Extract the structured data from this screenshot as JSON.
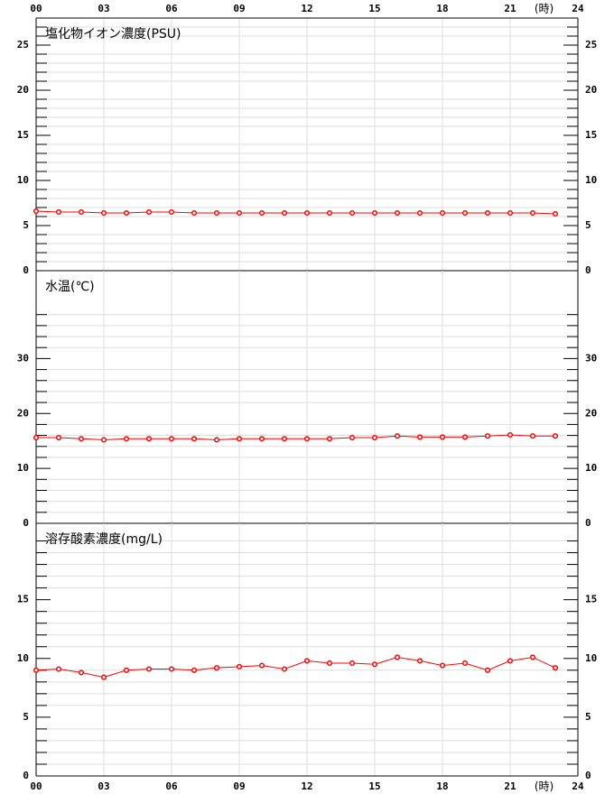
{
  "chart_data": [
    {
      "type": "line",
      "title": "塩化物イオン濃度(PSU)",
      "xlabel": "(時)",
      "x": [
        0,
        1,
        2,
        3,
        4,
        5,
        6,
        7,
        8,
        9,
        10,
        11,
        12,
        13,
        14,
        15,
        16,
        17,
        18,
        19,
        20,
        21,
        22,
        23
      ],
      "series": [
        {
          "color": "#ff0000",
          "values": [
            6.6,
            6.5,
            6.5,
            6.4,
            6.4,
            6.5,
            6.5,
            6.4,
            6.4,
            6.4,
            6.4,
            6.4,
            6.4,
            6.4,
            6.4,
            6.4,
            6.4,
            6.4,
            6.4,
            6.4,
            6.4,
            6.4,
            6.4,
            6.3
          ]
        }
      ],
      "xlim": [
        0,
        24
      ],
      "xticks": [
        {
          "value": 0,
          "label": "00"
        },
        {
          "value": 3,
          "label": "03"
        },
        {
          "value": 6,
          "label": "06"
        },
        {
          "value": 9,
          "label": "09"
        },
        12,
        15,
        18,
        21,
        24
      ],
      "ylim": [
        0,
        28
      ],
      "yticks": [
        0,
        5,
        10,
        15,
        20,
        25
      ],
      "minor_yticks": [
        1,
        2,
        3,
        4,
        6,
        7,
        8,
        9,
        11,
        12,
        13,
        14,
        16,
        17,
        18,
        19,
        21,
        22,
        23,
        24,
        26,
        27
      ],
      "xaxis": "top"
    },
    {
      "type": "line",
      "title": "水温(℃)",
      "x": [
        0,
        1,
        2,
        3,
        4,
        5,
        6,
        7,
        8,
        9,
        10,
        11,
        12,
        13,
        14,
        15,
        16,
        17,
        18,
        19,
        20,
        21,
        22,
        23
      ],
      "series": [
        {
          "color": "#ff0000",
          "values": [
            15.6,
            15.6,
            15.4,
            15.2,
            15.4,
            15.4,
            15.4,
            15.4,
            15.2,
            15.4,
            15.4,
            15.4,
            15.4,
            15.4,
            15.6,
            15.6,
            15.9,
            15.7,
            15.7,
            15.7,
            15.9,
            16.1,
            15.9,
            15.9
          ]
        }
      ],
      "xlim": [
        0,
        24
      ],
      "xticks": [
        0,
        3,
        6,
        9,
        12,
        15,
        18,
        21,
        24
      ],
      "ylim": [
        0,
        46
      ],
      "yticks": [
        0,
        10,
        20,
        30
      ],
      "minor_yticks": [
        2,
        4,
        6,
        8,
        12,
        14,
        16,
        18,
        22,
        24,
        26,
        28,
        32,
        34,
        36,
        38
      ]
    },
    {
      "type": "line",
      "title": "溶存酸素濃度(mg/L)",
      "xlabel": "(時)",
      "x": [
        0,
        1,
        2,
        3,
        4,
        5,
        6,
        7,
        8,
        9,
        10,
        11,
        12,
        13,
        14,
        15,
        16,
        17,
        18,
        19,
        20,
        21,
        22,
        23
      ],
      "series": [
        {
          "color": "#ff0000",
          "values": [
            9.0,
            9.1,
            8.8,
            8.4,
            9.0,
            9.1,
            9.1,
            9.0,
            9.2,
            9.3,
            9.4,
            9.1,
            9.8,
            9.6,
            9.6,
            9.5,
            10.1,
            9.8,
            9.4,
            9.6,
            9.0,
            9.8,
            10.1,
            9.2
          ]
        }
      ],
      "xlim": [
        0,
        24
      ],
      "xticks": [
        {
          "value": 0,
          "label": "00"
        },
        {
          "value": 3,
          "label": "03"
        },
        {
          "value": 6,
          "label": "06"
        },
        {
          "value": 9,
          "label": "09"
        },
        12,
        15,
        18,
        21,
        24
      ],
      "ylim": [
        0,
        21.5
      ],
      "yticks": [
        0,
        5,
        10,
        15
      ],
      "minor_yticks": [
        1,
        2,
        3,
        4,
        6,
        7,
        8,
        9,
        11,
        12,
        13,
        14,
        16,
        17,
        18,
        19,
        20
      ],
      "xaxis": "bottom"
    }
  ]
}
